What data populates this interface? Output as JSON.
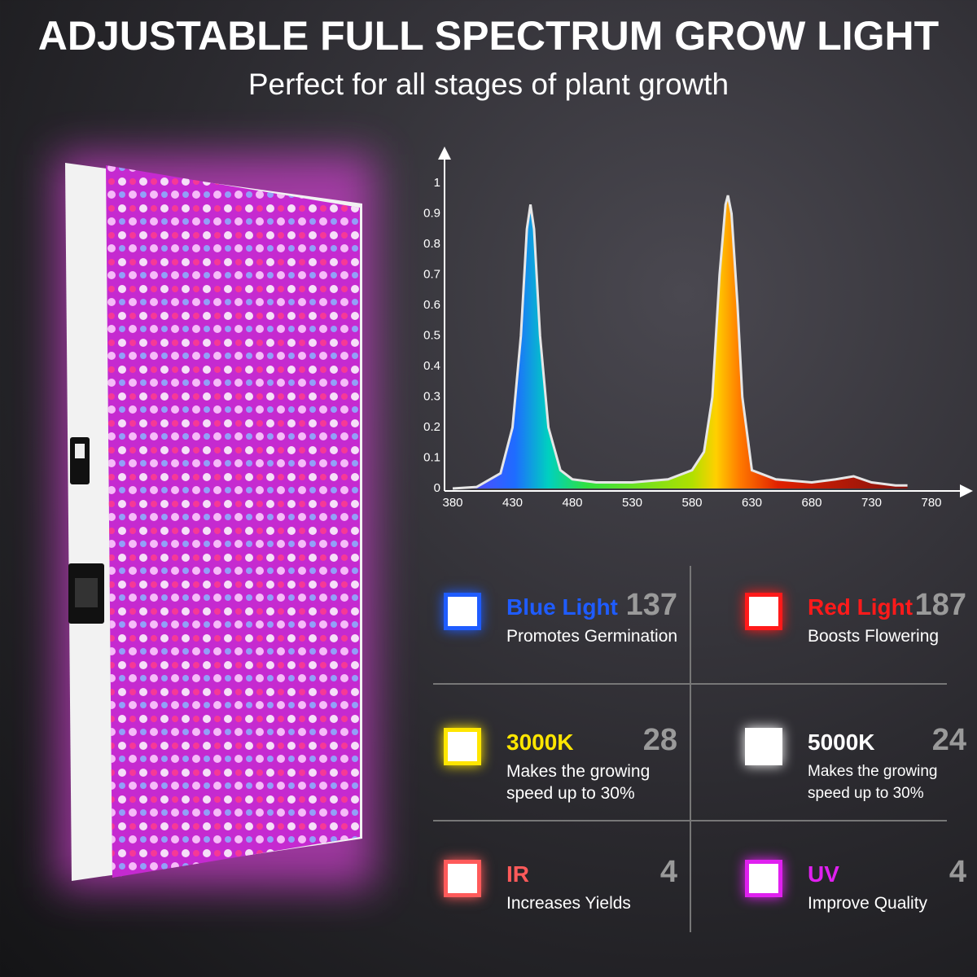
{
  "header": {
    "title": "ADJUSTABLE FULL SPECTRUM GROW LIGHT",
    "subtitle": "Perfect for all stages of plant growth"
  },
  "chart_data": {
    "type": "area",
    "x": [
      380,
      400,
      420,
      430,
      437,
      442,
      445,
      448,
      453,
      460,
      470,
      480,
      500,
      530,
      560,
      580,
      590,
      597,
      603,
      608,
      610,
      613,
      618,
      622,
      630,
      650,
      680,
      700,
      715,
      730,
      750,
      760
    ],
    "values": [
      0,
      0.005,
      0.05,
      0.2,
      0.5,
      0.85,
      0.93,
      0.85,
      0.5,
      0.2,
      0.06,
      0.03,
      0.02,
      0.02,
      0.03,
      0.06,
      0.12,
      0.3,
      0.7,
      0.93,
      0.96,
      0.9,
      0.6,
      0.3,
      0.06,
      0.03,
      0.02,
      0.03,
      0.04,
      0.02,
      0.01,
      0.01
    ],
    "color": "#e6e6e6",
    "xlim": [
      380,
      780
    ],
    "xticks": [
      380,
      430,
      480,
      530,
      580,
      630,
      680,
      730,
      780
    ],
    "ylim": [
      0,
      1
    ],
    "yticks": [
      0,
      0.1,
      0.2,
      0.3,
      0.4,
      0.5,
      0.6,
      0.7,
      0.8,
      0.9,
      1
    ]
  },
  "specs": [
    {
      "name": "Blue Light",
      "count": "137",
      "description": "Promotes Germination",
      "color": "#1f5cff"
    },
    {
      "name": "Red Light",
      "count": "187",
      "description": "Boosts Flowering",
      "color": "#ff1a1a"
    },
    {
      "name": "3000K",
      "count": "28",
      "description": "Makes the growing speed up to 30%",
      "color": "#ffe600"
    },
    {
      "name": "5000K",
      "count": "24",
      "description": "Makes the growing speed up to 30%",
      "color": "#ffffff"
    },
    {
      "name": "IR",
      "count": "4",
      "description": "Increases Yields",
      "color": "#ff5a5a"
    },
    {
      "name": "UV",
      "count": "4",
      "description": "Improve Quality",
      "color": "#e020f0"
    }
  ]
}
